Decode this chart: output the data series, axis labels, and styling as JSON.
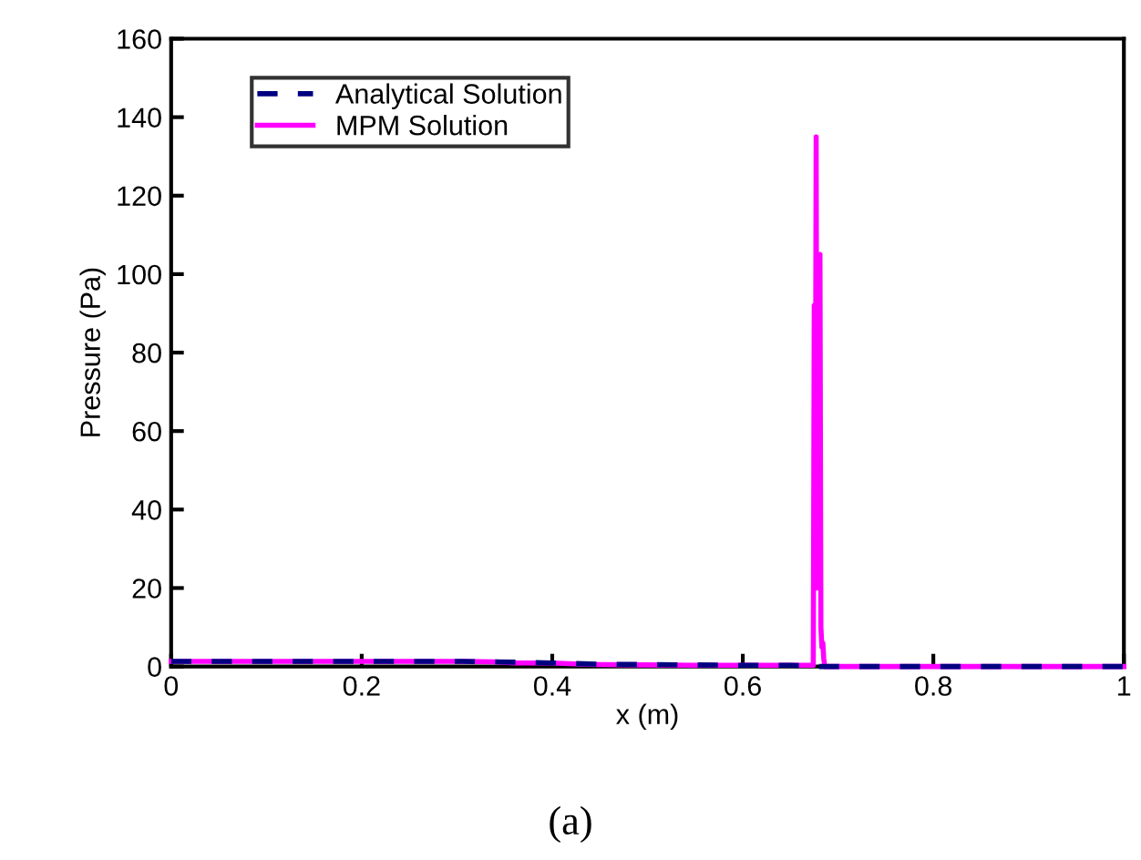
{
  "chart_data": {
    "type": "line",
    "xlabel": "x (m)",
    "ylabel": "Pressure (Pa)",
    "xlim": [
      0,
      1
    ],
    "ylim": [
      0,
      160
    ],
    "xticks": [
      0,
      0.2,
      0.4,
      0.6,
      0.8,
      1
    ],
    "yticks": [
      0,
      20,
      40,
      60,
      80,
      100,
      120,
      140,
      160
    ],
    "grid": false,
    "legend": "top left",
    "marker": "none",
    "annotations": [
      "(a)"
    ],
    "series": [
      {
        "name": "Analytical Solution",
        "color": "#000080",
        "line_style": "dashed",
        "x": [
          0,
          0.1,
          0.2,
          0.3,
          0.34,
          0.4,
          0.45,
          0.5,
          0.55,
          0.6,
          0.65,
          0.675,
          0.676,
          0.7,
          0.8,
          0.9,
          1
        ],
        "values": [
          1.3,
          1.3,
          1.3,
          1.3,
          1.2,
          0.9,
          0.6,
          0.5,
          0.4,
          0.3,
          0.3,
          0.2,
          0,
          0,
          0,
          0,
          0
        ]
      },
      {
        "name": "MPM Solution",
        "color": "#ff00ff",
        "line_style": "solid",
        "x": [
          0,
          0.1,
          0.2,
          0.3,
          0.34,
          0.36,
          0.4,
          0.43,
          0.45,
          0.5,
          0.55,
          0.6,
          0.65,
          0.674,
          0.675,
          0.676,
          0.677,
          0.678,
          0.679,
          0.68,
          0.681,
          0.682,
          0.683,
          0.684,
          0.685,
          0.686,
          0.7,
          0.8,
          0.9,
          1
        ],
        "values": [
          1.3,
          1.3,
          1.3,
          1.3,
          1.2,
          0.9,
          0.9,
          0.6,
          0.5,
          0.4,
          0.3,
          0.3,
          0.3,
          0.3,
          92,
          30,
          135,
          20,
          100,
          25,
          105,
          10,
          5,
          6,
          2,
          0,
          0,
          0,
          0,
          0
        ]
      }
    ]
  }
}
